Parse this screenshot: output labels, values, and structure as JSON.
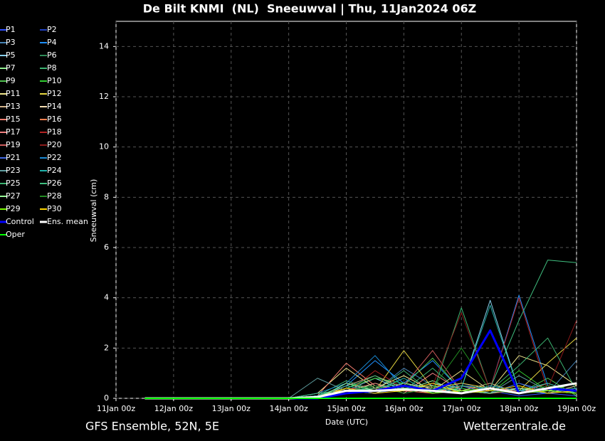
{
  "chart_data": {
    "type": "line",
    "title": "De Bilt KNMI  (NL)  Sneeuwval | Thu, 11Jan2024 06Z",
    "x_label": "Date (UTC)",
    "y_label": "Sneeuwval (cm)",
    "footer_left": "GFS Ensemble, 52N, 5E",
    "footer_right": "Wetterzentrale.de",
    "categories": [
      "11Jan 00z",
      null,
      "12Jan 00z",
      null,
      "13Jan 00z",
      null,
      "14Jan 00z",
      null,
      "15Jan 00z",
      null,
      "16Jan 00z",
      null,
      "17Jan 00z",
      null,
      "18Jan 00z",
      null,
      "19Jan 00z"
    ],
    "ylim": [
      0,
      15
    ],
    "yticks": [
      0,
      2,
      4,
      6,
      8,
      10,
      12,
      14
    ],
    "grid": true,
    "series": [
      {
        "name": "P1",
        "color": "#3050ff",
        "linewidth": 1,
        "values": [
          null,
          0,
          0,
          0,
          0,
          0,
          0,
          0,
          0.2,
          0.3,
          0.5,
          0.3,
          0.2,
          0.3,
          0.1,
          0.2,
          0.1
        ]
      },
      {
        "name": "P2",
        "color": "#2040c0",
        "linewidth": 1,
        "values": [
          null,
          0,
          0,
          0,
          0,
          0,
          0,
          0,
          0.3,
          0.5,
          0.4,
          0.2,
          0.6,
          0.3,
          0.2,
          0.4,
          0.2
        ]
      },
      {
        "name": "P3",
        "color": "#4682b4",
        "linewidth": 1,
        "values": [
          null,
          0,
          0,
          0,
          0,
          0,
          0,
          0.1,
          0.4,
          0.3,
          1.2,
          0.5,
          0.3,
          0.2,
          0.6,
          0.2,
          1.5
        ]
      },
      {
        "name": "P4",
        "color": "#1e90ff",
        "linewidth": 1,
        "values": [
          null,
          0,
          0,
          0,
          0,
          0,
          0,
          0.1,
          0.5,
          1.5,
          0.6,
          1.5,
          0.3,
          0.4,
          4.1,
          0.5,
          0.2
        ]
      },
      {
        "name": "P5",
        "color": "#87ceeb",
        "linewidth": 1,
        "values": [
          null,
          0,
          0,
          0,
          0,
          0,
          0,
          0.2,
          0.3,
          0.8,
          0.3,
          0.6,
          0.4,
          3.9,
          0.3,
          0.4,
          0.3
        ]
      },
      {
        "name": "P6",
        "color": "#2e8b57",
        "linewidth": 1,
        "values": [
          null,
          0,
          0,
          0,
          0,
          0,
          0,
          0,
          0.6,
          0.4,
          0.9,
          0.3,
          0.5,
          0.2,
          0.3,
          0.2,
          0.4
        ]
      },
      {
        "name": "P7",
        "color": "#90ee90",
        "linewidth": 1,
        "values": [
          null,
          0,
          0,
          0,
          0,
          0,
          0,
          0,
          0.2,
          0.6,
          0.3,
          0.7,
          0.2,
          0.5,
          0.3,
          0.6,
          0.2
        ]
      },
      {
        "name": "P8",
        "color": "#3cb371",
        "linewidth": 1,
        "values": [
          null,
          0,
          0,
          0,
          0,
          0,
          0,
          0.1,
          0.7,
          0.3,
          1.1,
          0.2,
          3.6,
          0.3,
          0.2,
          0.3,
          0.4
        ]
      },
      {
        "name": "P9",
        "color": "#50c050",
        "linewidth": 1,
        "values": [
          null,
          0,
          0,
          0,
          0,
          0,
          0,
          0,
          0.3,
          0.2,
          0.5,
          1.6,
          0.3,
          0.6,
          0.2,
          0.8,
          0.1
        ]
      },
      {
        "name": "P10",
        "color": "#32cd32",
        "linewidth": 1,
        "values": [
          null,
          0,
          0,
          0,
          0,
          0,
          0,
          0,
          0.4,
          0.8,
          0.6,
          0.3,
          0.4,
          0.2,
          1.1,
          0.3,
          0.2
        ]
      },
      {
        "name": "P11",
        "color": "#f0e68c",
        "linewidth": 1,
        "values": [
          null,
          0,
          0,
          0,
          0,
          0,
          0,
          0.2,
          1.2,
          0.4,
          0.9,
          0.3,
          1.1,
          0.3,
          1.7,
          1.3,
          0.5
        ]
      },
      {
        "name": "P12",
        "color": "#e6d640",
        "linewidth": 1,
        "values": [
          null,
          0,
          0,
          0,
          0,
          0,
          0,
          0.1,
          0.4,
          0.3,
          1.9,
          0.4,
          0.6,
          0.4,
          0.3,
          1.4,
          2.4
        ]
      },
      {
        "name": "P13",
        "color": "#d2b48c",
        "linewidth": 1,
        "values": [
          null,
          0,
          0,
          0,
          0,
          0,
          0,
          0,
          0.5,
          0.9,
          0.4,
          0.2,
          0.3,
          0.6,
          0.2,
          0.3,
          0.2
        ]
      },
      {
        "name": "P14",
        "color": "#f5deb3",
        "linewidth": 1,
        "values": [
          null,
          0,
          0,
          0,
          0,
          0,
          0,
          0,
          0.3,
          0.2,
          0.6,
          0.4,
          0.2,
          0.3,
          0.4,
          0.2,
          0.5
        ]
      },
      {
        "name": "P15",
        "color": "#fa8072",
        "linewidth": 1,
        "values": [
          null,
          0,
          0,
          0,
          0,
          0,
          0,
          0.1,
          1.4,
          0.5,
          0.3,
          0.6,
          0.2,
          0.4,
          0.3,
          0.2,
          0.3
        ]
      },
      {
        "name": "P16",
        "color": "#ff7f50",
        "linewidth": 1,
        "values": [
          null,
          0,
          0,
          0,
          0,
          0,
          0,
          0,
          0.2,
          0.4,
          0.3,
          0.2,
          0.5,
          0.3,
          0.2,
          0.6,
          0.2
        ]
      },
      {
        "name": "P17",
        "color": "#f08080",
        "linewidth": 1,
        "values": [
          null,
          0,
          0,
          0,
          0,
          0,
          0,
          0,
          0.3,
          0.6,
          0.2,
          1.0,
          0.3,
          0.2,
          0.4,
          0.3,
          0.2
        ]
      },
      {
        "name": "P18",
        "color": "#b22222",
        "linewidth": 1,
        "values": [
          null,
          0,
          0,
          0,
          0,
          0,
          0,
          0,
          0.2,
          1.1,
          0.4,
          0.3,
          0.2,
          0.4,
          4.0,
          0.3,
          0.6
        ]
      },
      {
        "name": "P19",
        "color": "#cd5c5c",
        "linewidth": 1,
        "values": [
          null,
          0,
          0,
          0,
          0,
          0,
          0,
          0,
          0.4,
          0.3,
          0.5,
          1.9,
          0.3,
          0.2,
          0.3,
          0.2,
          0.4
        ]
      },
      {
        "name": "P20",
        "color": "#8b1a1a",
        "linewidth": 1,
        "values": [
          null,
          0,
          0,
          0,
          0,
          0,
          0,
          0,
          0.2,
          0.4,
          0.3,
          0.5,
          3.4,
          0.3,
          0.2,
          0.4,
          3.1
        ]
      },
      {
        "name": "P21",
        "color": "#4169e1",
        "linewidth": 1,
        "values": [
          null,
          0,
          0,
          0,
          0,
          0,
          0,
          0,
          0.3,
          0.2,
          0.4,
          0.3,
          0.5,
          0.2,
          0.6,
          0.3,
          0.2
        ]
      },
      {
        "name": "P22",
        "color": "#1a8ad4",
        "linewidth": 1,
        "values": [
          null,
          0,
          0,
          0,
          0,
          0,
          0,
          0.2,
          0.6,
          1.7,
          0.4,
          0.3,
          0.2,
          0.5,
          0.3,
          0.2,
          0.4
        ]
      },
      {
        "name": "P23",
        "color": "#5f9ea0",
        "linewidth": 1,
        "values": [
          null,
          0,
          0,
          0,
          0,
          0,
          0,
          0.8,
          0.3,
          0.5,
          0.2,
          0.4,
          0.3,
          0.2,
          0.9,
          0.3,
          0.2
        ]
      },
      {
        "name": "P24",
        "color": "#20b2aa",
        "linewidth": 1,
        "values": [
          null,
          0,
          0,
          0,
          0,
          0,
          0,
          0.1,
          0.5,
          0.3,
          0.8,
          0.2,
          0.4,
          3.7,
          0.3,
          0.6,
          0.2
        ]
      },
      {
        "name": "P25",
        "color": "#3cb371",
        "linewidth": 1,
        "values": [
          null,
          0,
          0,
          0,
          0,
          0,
          0,
          0,
          0.4,
          0.9,
          0.3,
          1.2,
          0.2,
          0.3,
          1.3,
          2.4,
          0.3
        ]
      },
      {
        "name": "P26",
        "color": "#40c080",
        "linewidth": 1,
        "values": [
          null,
          0,
          0,
          0,
          0,
          0,
          0,
          0.2,
          0.3,
          0.4,
          0.6,
          0.3,
          0.5,
          0.4,
          3.1,
          5.5,
          5.4
        ]
      },
      {
        "name": "P27",
        "color": "#98fb98",
        "linewidth": 1,
        "values": [
          null,
          0,
          0,
          0,
          0,
          0,
          0,
          0,
          0.6,
          0.3,
          0.4,
          0.5,
          0.3,
          0.2,
          0.4,
          0.3,
          0.6
        ]
      },
      {
        "name": "P28",
        "color": "#228b22",
        "linewidth": 1,
        "values": [
          null,
          0,
          0,
          0,
          0,
          0,
          0,
          0,
          0.3,
          0.5,
          0.2,
          0.4,
          2.0,
          0.3,
          0.2,
          0.5,
          0.3
        ]
      },
      {
        "name": "P29",
        "color": "#7cfc00",
        "linewidth": 1,
        "values": [
          null,
          0,
          0,
          0,
          0,
          0,
          0,
          0,
          0.2,
          0.3,
          0.5,
          0.2,
          0.3,
          0.4,
          0.2,
          0.3,
          0.2
        ]
      },
      {
        "name": "P30",
        "color": "#ffd700",
        "linewidth": 1,
        "values": [
          null,
          0,
          0,
          0,
          0,
          0,
          0,
          0,
          0.4,
          0.2,
          0.3,
          0.6,
          0.2,
          0.3,
          0.5,
          0.2,
          0.3
        ]
      },
      {
        "name": "Control",
        "color": "#0000ff",
        "linewidth": 3,
        "values": [
          null,
          0,
          0,
          0,
          0,
          0,
          0,
          0,
          0.2,
          0.3,
          0.5,
          0.3,
          0.8,
          2.7,
          0.2,
          0.4,
          0.3
        ]
      },
      {
        "name": "Ens. mean",
        "color": "#ffffff",
        "linewidth": 3,
        "values": [
          null,
          0,
          0,
          0,
          0,
          0,
          0,
          0.05,
          0.3,
          0.3,
          0.35,
          0.3,
          0.2,
          0.4,
          0.2,
          0.4,
          0.6
        ]
      },
      {
        "name": "Oper",
        "color": "#00ff00",
        "linewidth": 2,
        "values": [
          null,
          0,
          0,
          0,
          0,
          0,
          0,
          0,
          0,
          0,
          0,
          0,
          0,
          0,
          0,
          0,
          0
        ]
      }
    ]
  }
}
